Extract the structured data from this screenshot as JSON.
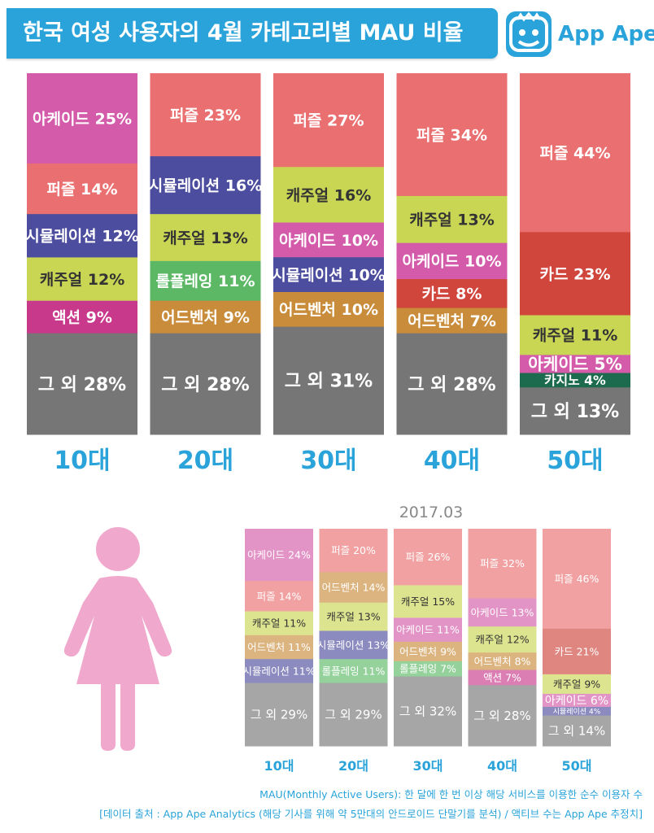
{
  "title": "한국 여성 사용자의 4월 카테고리별 MAU 비율",
  "brand": {
    "name": "App Ape",
    "icon": "app-ape-logo-icon"
  },
  "footnotes": [
    "MAU(Monthly Active Users): 한 달에 한 번 이상 해당 서비스를 이용한 순수 이용자 수",
    "[데이터 출처 : App Ape Analytics (해당 기사를 위해 약 5만대의 안드로이드 단말기를 분석) / 액티브 수는 App Ape 추정치]"
  ],
  "colors": {
    "아케이드": "#d45ba9",
    "퍼즐": "#ea6f70",
    "시뮬레이션": "#4c4d9e",
    "캐주얼": "#c9d654",
    "액션": "#c8388b",
    "롤플레잉": "#5cb865",
    "어드벤처": "#c98c3a",
    "카드": "#d0453c",
    "카지노": "#1d6b4e",
    "그 외": "#767676",
    "label": "#29a3d9"
  },
  "chart_data": [
    {
      "type": "bar",
      "stacked": true,
      "normalized": true,
      "title": "",
      "categories": [
        "10대",
        "20대",
        "30대",
        "40대",
        "50대"
      ],
      "stacks": [
        [
          {
            "name": "아케이드",
            "value": 25
          },
          {
            "name": "퍼즐",
            "value": 14
          },
          {
            "name": "시뮬레이션",
            "value": 12
          },
          {
            "name": "캐주얼",
            "value": 12
          },
          {
            "name": "액션",
            "value": 9
          },
          {
            "name": "그 외",
            "value": 28
          }
        ],
        [
          {
            "name": "퍼즐",
            "value": 23
          },
          {
            "name": "시뮬레이션",
            "value": 16
          },
          {
            "name": "캐주얼",
            "value": 13
          },
          {
            "name": "롤플레잉",
            "value": 11
          },
          {
            "name": "어드벤처",
            "value": 9
          },
          {
            "name": "그 외",
            "value": 28
          }
        ],
        [
          {
            "name": "퍼즐",
            "value": 27
          },
          {
            "name": "캐주얼",
            "value": 16
          },
          {
            "name": "아케이드",
            "value": 10
          },
          {
            "name": "시뮬레이션",
            "value": 10
          },
          {
            "name": "어드벤처",
            "value": 10
          },
          {
            "name": "그 외",
            "value": 31
          }
        ],
        [
          {
            "name": "퍼즐",
            "value": 34
          },
          {
            "name": "캐주얼",
            "value": 13
          },
          {
            "name": "아케이드",
            "value": 10
          },
          {
            "name": "카드",
            "value": 8
          },
          {
            "name": "어드벤처",
            "value": 7
          },
          {
            "name": "그 외",
            "value": 28
          }
        ],
        [
          {
            "name": "퍼즐",
            "value": 44
          },
          {
            "name": "카드",
            "value": 23
          },
          {
            "name": "캐주얼",
            "value": 11
          },
          {
            "name": "아케이드",
            "value": 5
          },
          {
            "name": "카지노",
            "value": 4
          },
          {
            "name": "그 외",
            "value": 13
          }
        ]
      ]
    },
    {
      "type": "bar",
      "stacked": true,
      "normalized": true,
      "title": "2017.03",
      "categories": [
        "10대",
        "20대",
        "30대",
        "40대",
        "50대"
      ],
      "stacks": [
        [
          {
            "name": "아케이드",
            "value": 24
          },
          {
            "name": "퍼즐",
            "value": 14
          },
          {
            "name": "캐주얼",
            "value": 11
          },
          {
            "name": "어드벤처",
            "value": 11
          },
          {
            "name": "시뮬레이션",
            "value": 11
          },
          {
            "name": "그 외",
            "value": 29
          }
        ],
        [
          {
            "name": "퍼즐",
            "value": 20
          },
          {
            "name": "어드벤처",
            "value": 14
          },
          {
            "name": "캐주얼",
            "value": 13
          },
          {
            "name": "시뮬레이션",
            "value": 13
          },
          {
            "name": "롤플레잉",
            "value": 11
          },
          {
            "name": "그 외",
            "value": 29
          }
        ],
        [
          {
            "name": "퍼즐",
            "value": 26
          },
          {
            "name": "캐주얼",
            "value": 15
          },
          {
            "name": "아케이드",
            "value": 11
          },
          {
            "name": "어드벤처",
            "value": 9
          },
          {
            "name": "롤플레잉",
            "value": 7
          },
          {
            "name": "그 외",
            "value": 32
          }
        ],
        [
          {
            "name": "퍼즐",
            "value": 32
          },
          {
            "name": "아케이드",
            "value": 13
          },
          {
            "name": "캐주얼",
            "value": 12
          },
          {
            "name": "어드벤처",
            "value": 8
          },
          {
            "name": "액션",
            "value": 7
          },
          {
            "name": "그 외",
            "value": 28
          }
        ],
        [
          {
            "name": "퍼즐",
            "value": 46
          },
          {
            "name": "카드",
            "value": 21
          },
          {
            "name": "캐주얼",
            "value": 9
          },
          {
            "name": "아케이드",
            "value": 6
          },
          {
            "name": "시뮬레이션",
            "value": 4
          },
          {
            "name": "그 외",
            "value": 14
          }
        ]
      ]
    }
  ]
}
